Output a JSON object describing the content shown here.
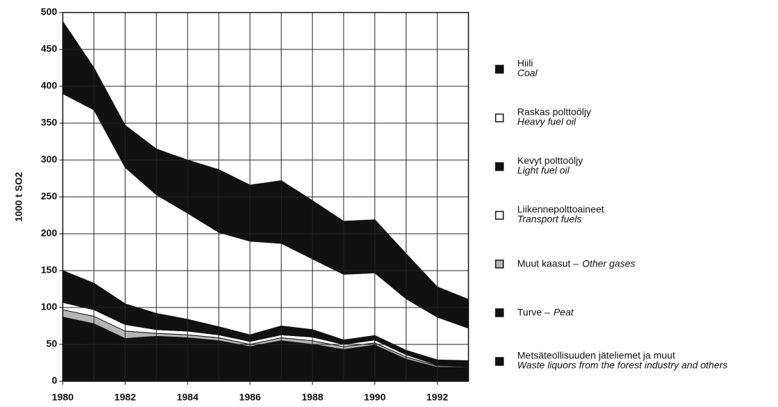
{
  "chart_data": {
    "type": "stacked_area",
    "y_label": "1000 t SO2",
    "x": [
      1980,
      1981,
      1982,
      1983,
      1984,
      1985,
      1986,
      1987,
      1988,
      1989,
      1990,
      1991,
      1992,
      1993
    ],
    "xlim": [
      1980,
      1993
    ],
    "xticks": [
      1980,
      1982,
      1984,
      1986,
      1988,
      1990,
      1992
    ],
    "ylim": [
      0,
      500
    ],
    "yticks": [
      0,
      50,
      100,
      150,
      200,
      250,
      300,
      350,
      400,
      450,
      500
    ],
    "grid": true,
    "legend": "right",
    "series": [
      {
        "name": "Metsäteollisuuden jäteliemet ja muut",
        "name_en": "Waste liquors from the forest industry and others",
        "color": "#111111",
        "values": [
          55,
          50,
          38,
          40,
          38,
          35,
          30,
          35,
          32,
          28,
          32,
          20,
          12,
          12
        ]
      },
      {
        "name": "Turve –",
        "name_en": "Peat",
        "color": "#111111",
        "values": [
          32,
          28,
          20,
          21,
          21,
          20,
          17,
          20,
          18,
          15,
          17,
          10,
          7,
          7
        ]
      },
      {
        "name": "Muut kaasut –",
        "name_en": "Other gases",
        "color": "#b5b5b5",
        "values": [
          10,
          10,
          10,
          4,
          4,
          4,
          3,
          4,
          5,
          4,
          3,
          3,
          2,
          1
        ]
      },
      {
        "name": "Liikennepolttoaineet",
        "name_en": "Transport fuels",
        "color": "#ffffff",
        "values": [
          10,
          9,
          9,
          5,
          5,
          4,
          4,
          4,
          5,
          3,
          4,
          3,
          1,
          1
        ]
      },
      {
        "name": "Kevyt polttoöljy",
        "name_en": "Light fuel oil",
        "color": "#111111",
        "values": [
          43,
          36,
          28,
          22,
          16,
          11,
          9,
          12,
          10,
          6,
          6,
          6,
          7,
          7
        ]
      },
      {
        "name": "Raskas polttoöljy",
        "name_en": "Heavy fuel oil",
        "color": "#ffffff",
        "values": [
          240,
          235,
          185,
          161,
          144,
          128,
          127,
          112,
          96,
          89,
          85,
          70,
          58,
          44
        ]
      },
      {
        "name": "Hiili",
        "name_en": "Coal",
        "color": "#111111",
        "values": [
          98,
          57,
          57,
          62,
          72,
          85,
          76,
          85,
          79,
          72,
          72,
          61,
          41,
          39
        ]
      }
    ]
  }
}
